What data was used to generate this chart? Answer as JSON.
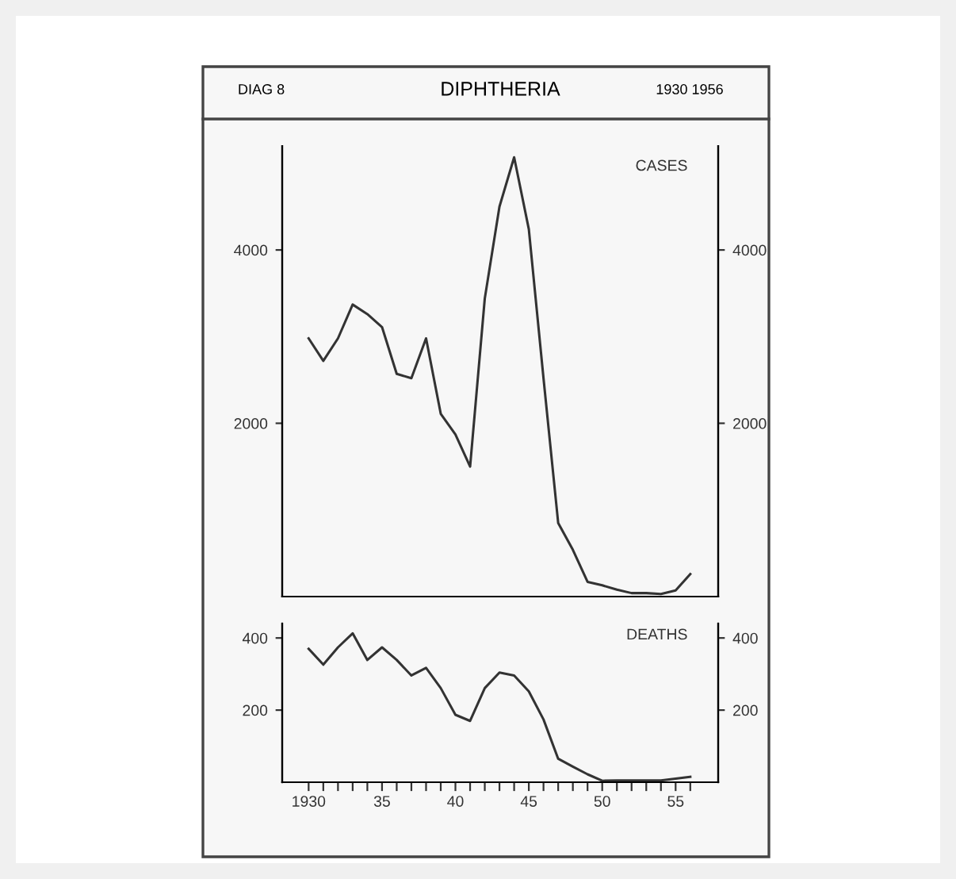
{
  "chart_data": [
    {
      "type": "line",
      "title": "DIPHTHERIA",
      "annotations": [
        "DIAG 8",
        "1930 1956"
      ],
      "x": [
        1930,
        1931,
        1932,
        1933,
        1934,
        1935,
        1936,
        1937,
        1938,
        1939,
        1940,
        1941,
        1942,
        1943,
        1944,
        1945,
        1946,
        1947,
        1948,
        1949,
        1950,
        1951,
        1952,
        1953,
        1954,
        1955,
        1956
      ],
      "series": [
        {
          "name": "CASES",
          "color": "#333333",
          "values": [
            2980,
            2720,
            2980,
            3370,
            3260,
            3110,
            2570,
            2520,
            2980,
            2110,
            1870,
            1500,
            3440,
            4500,
            5070,
            4240,
            2520,
            850,
            540,
            170,
            130,
            80,
            40,
            40,
            30,
            70,
            260
          ]
        }
      ],
      "xlim": [
        1928.2,
        1957.9
      ],
      "ylim": [
        0,
        5200
      ],
      "yticks": [
        2000,
        4000
      ],
      "y2lim": [
        0,
        5200
      ],
      "y2ticks": [
        2000,
        4000
      ],
      "tick_labels": "y",
      "grid": false,
      "legend": false
    },
    {
      "type": "line",
      "x": [
        1930,
        1931,
        1932,
        1933,
        1934,
        1935,
        1936,
        1937,
        1938,
        1939,
        1940,
        1941,
        1942,
        1943,
        1944,
        1945,
        1946,
        1947,
        1948,
        1949,
        1950,
        1951,
        1952,
        1953,
        1954,
        1955,
        1956
      ],
      "series": [
        {
          "name": "DEATHS",
          "color": "#333333",
          "values": [
            370,
            326,
            374,
            413,
            339,
            374,
            339,
            296,
            317,
            261,
            187,
            170,
            261,
            304,
            296,
            252,
            174,
            65,
            43,
            22,
            4,
            5,
            5,
            5,
            5,
            10,
            15
          ]
        }
      ],
      "xlim": [
        1928.2,
        1957.9
      ],
      "xticks": [
        {
          "value": 1930,
          "label": "1930"
        },
        {
          "value": 1931,
          "label": null
        },
        {
          "value": 1932,
          "label": null
        },
        {
          "value": 1933,
          "label": null
        },
        {
          "value": 1934,
          "label": null
        },
        {
          "value": 1935,
          "label": "35"
        },
        {
          "value": 1936,
          "label": null
        },
        {
          "value": 1937,
          "label": null
        },
        {
          "value": 1938,
          "label": null
        },
        {
          "value": 1939,
          "label": null
        },
        {
          "value": 1940,
          "label": "40"
        },
        {
          "value": 1941,
          "label": null
        },
        {
          "value": 1942,
          "label": null
        },
        {
          "value": 1943,
          "label": null
        },
        {
          "value": 1944,
          "label": null
        },
        {
          "value": 1945,
          "label": "45"
        },
        {
          "value": 1946,
          "label": null
        },
        {
          "value": 1947,
          "label": null
        },
        {
          "value": 1948,
          "label": null
        },
        {
          "value": 1949,
          "label": null
        },
        {
          "value": 1950,
          "label": "50"
        },
        {
          "value": 1951,
          "label": null
        },
        {
          "value": 1952,
          "label": null
        },
        {
          "value": 1953,
          "label": null
        },
        {
          "value": 1954,
          "label": null
        },
        {
          "value": 1955,
          "label": "55"
        },
        {
          "value": 1956,
          "label": null
        }
      ],
      "ylim": [
        0,
        440
      ],
      "yticks": [
        200,
        400
      ],
      "y2lim": [
        0,
        440
      ],
      "y2ticks": [
        200,
        400
      ],
      "grid": false,
      "legend": false
    }
  ]
}
